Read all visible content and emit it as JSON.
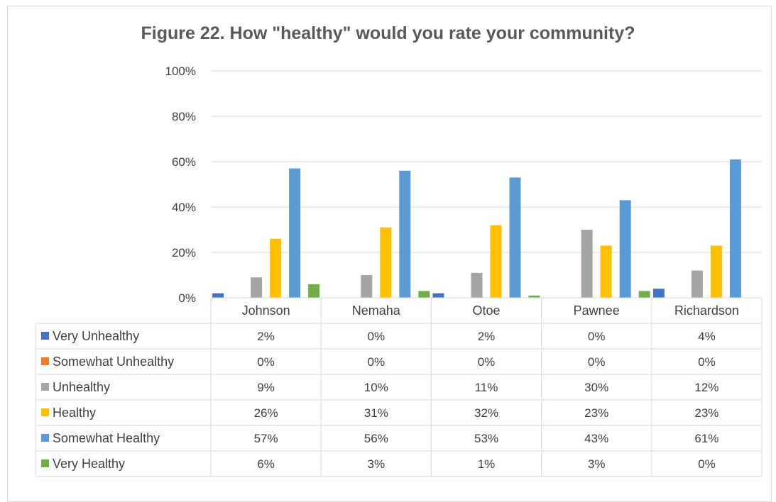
{
  "chart_data": {
    "type": "bar",
    "title": "Figure 22. How \"healthy\" would you rate your community?",
    "xlabel": "",
    "ylabel": "",
    "ylim": [
      0,
      100
    ],
    "y_ticks": [
      "0%",
      "20%",
      "40%",
      "60%",
      "80%",
      "100%"
    ],
    "grid": true,
    "legend": "data table",
    "categories": [
      "Johnson",
      "Nemaha",
      "Otoe",
      "Pawnee",
      "Richardson"
    ],
    "series": [
      {
        "name": "Very Unhealthy",
        "color": "#4472c4",
        "values": [
          2,
          0,
          2,
          0,
          4
        ],
        "labels": [
          "2%",
          "0%",
          "2%",
          "0%",
          "4%"
        ]
      },
      {
        "name": "Somewhat Unhealthy",
        "color": "#ed7d31",
        "values": [
          0,
          0,
          0,
          0,
          0
        ],
        "labels": [
          "0%",
          "0%",
          "0%",
          "0%",
          "0%"
        ]
      },
      {
        "name": "Unhealthy",
        "color": "#a5a5a5",
        "values": [
          9,
          10,
          11,
          30,
          12
        ],
        "labels": [
          "9%",
          "10%",
          "11%",
          "30%",
          "12%"
        ]
      },
      {
        "name": "Healthy",
        "color": "#ffc000",
        "values": [
          26,
          31,
          32,
          23,
          23
        ],
        "labels": [
          "26%",
          "31%",
          "32%",
          "23%",
          "23%"
        ]
      },
      {
        "name": "Somewhat Healthy",
        "color": "#5b9bd5",
        "values": [
          57,
          56,
          53,
          43,
          61
        ],
        "labels": [
          "57%",
          "56%",
          "53%",
          "43%",
          "61%"
        ]
      },
      {
        "name": "Very Healthy",
        "color": "#70ad47",
        "values": [
          6,
          3,
          1,
          3,
          0
        ],
        "labels": [
          "6%",
          "3%",
          "1%",
          "3%",
          "0%"
        ]
      }
    ]
  }
}
